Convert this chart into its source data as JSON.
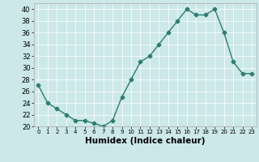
{
  "x": [
    0,
    1,
    2,
    3,
    4,
    5,
    6,
    7,
    8,
    9,
    10,
    11,
    12,
    13,
    14,
    15,
    16,
    17,
    18,
    19,
    20,
    21,
    22,
    23
  ],
  "y": [
    27,
    24,
    23,
    22,
    21,
    21,
    20.5,
    20,
    21,
    25,
    28,
    31,
    32,
    34,
    36,
    38,
    40,
    39,
    39,
    40,
    36,
    31,
    29,
    29
  ],
  "line_color": "#2e7d6e",
  "marker": "D",
  "markersize": 2.5,
  "linewidth": 1.0,
  "xlabel": "Humidex (Indice chaleur)",
  "ylim": [
    20,
    41
  ],
  "xlim": [
    -0.5,
    23.5
  ],
  "yticks": [
    20,
    22,
    24,
    26,
    28,
    30,
    32,
    34,
    36,
    38,
    40
  ],
  "xticks": [
    0,
    1,
    2,
    3,
    4,
    5,
    6,
    7,
    8,
    9,
    10,
    11,
    12,
    13,
    14,
    15,
    16,
    17,
    18,
    19,
    20,
    21,
    22,
    23
  ],
  "bg_color": "#cce8e8",
  "grid_color": "#ffffff",
  "grid_linewidth": 0.5,
  "spine_color": "#aaaaaa",
  "x_tick_fontsize": 5.0,
  "y_tick_fontsize": 6.0,
  "xlabel_fontsize": 7.5
}
